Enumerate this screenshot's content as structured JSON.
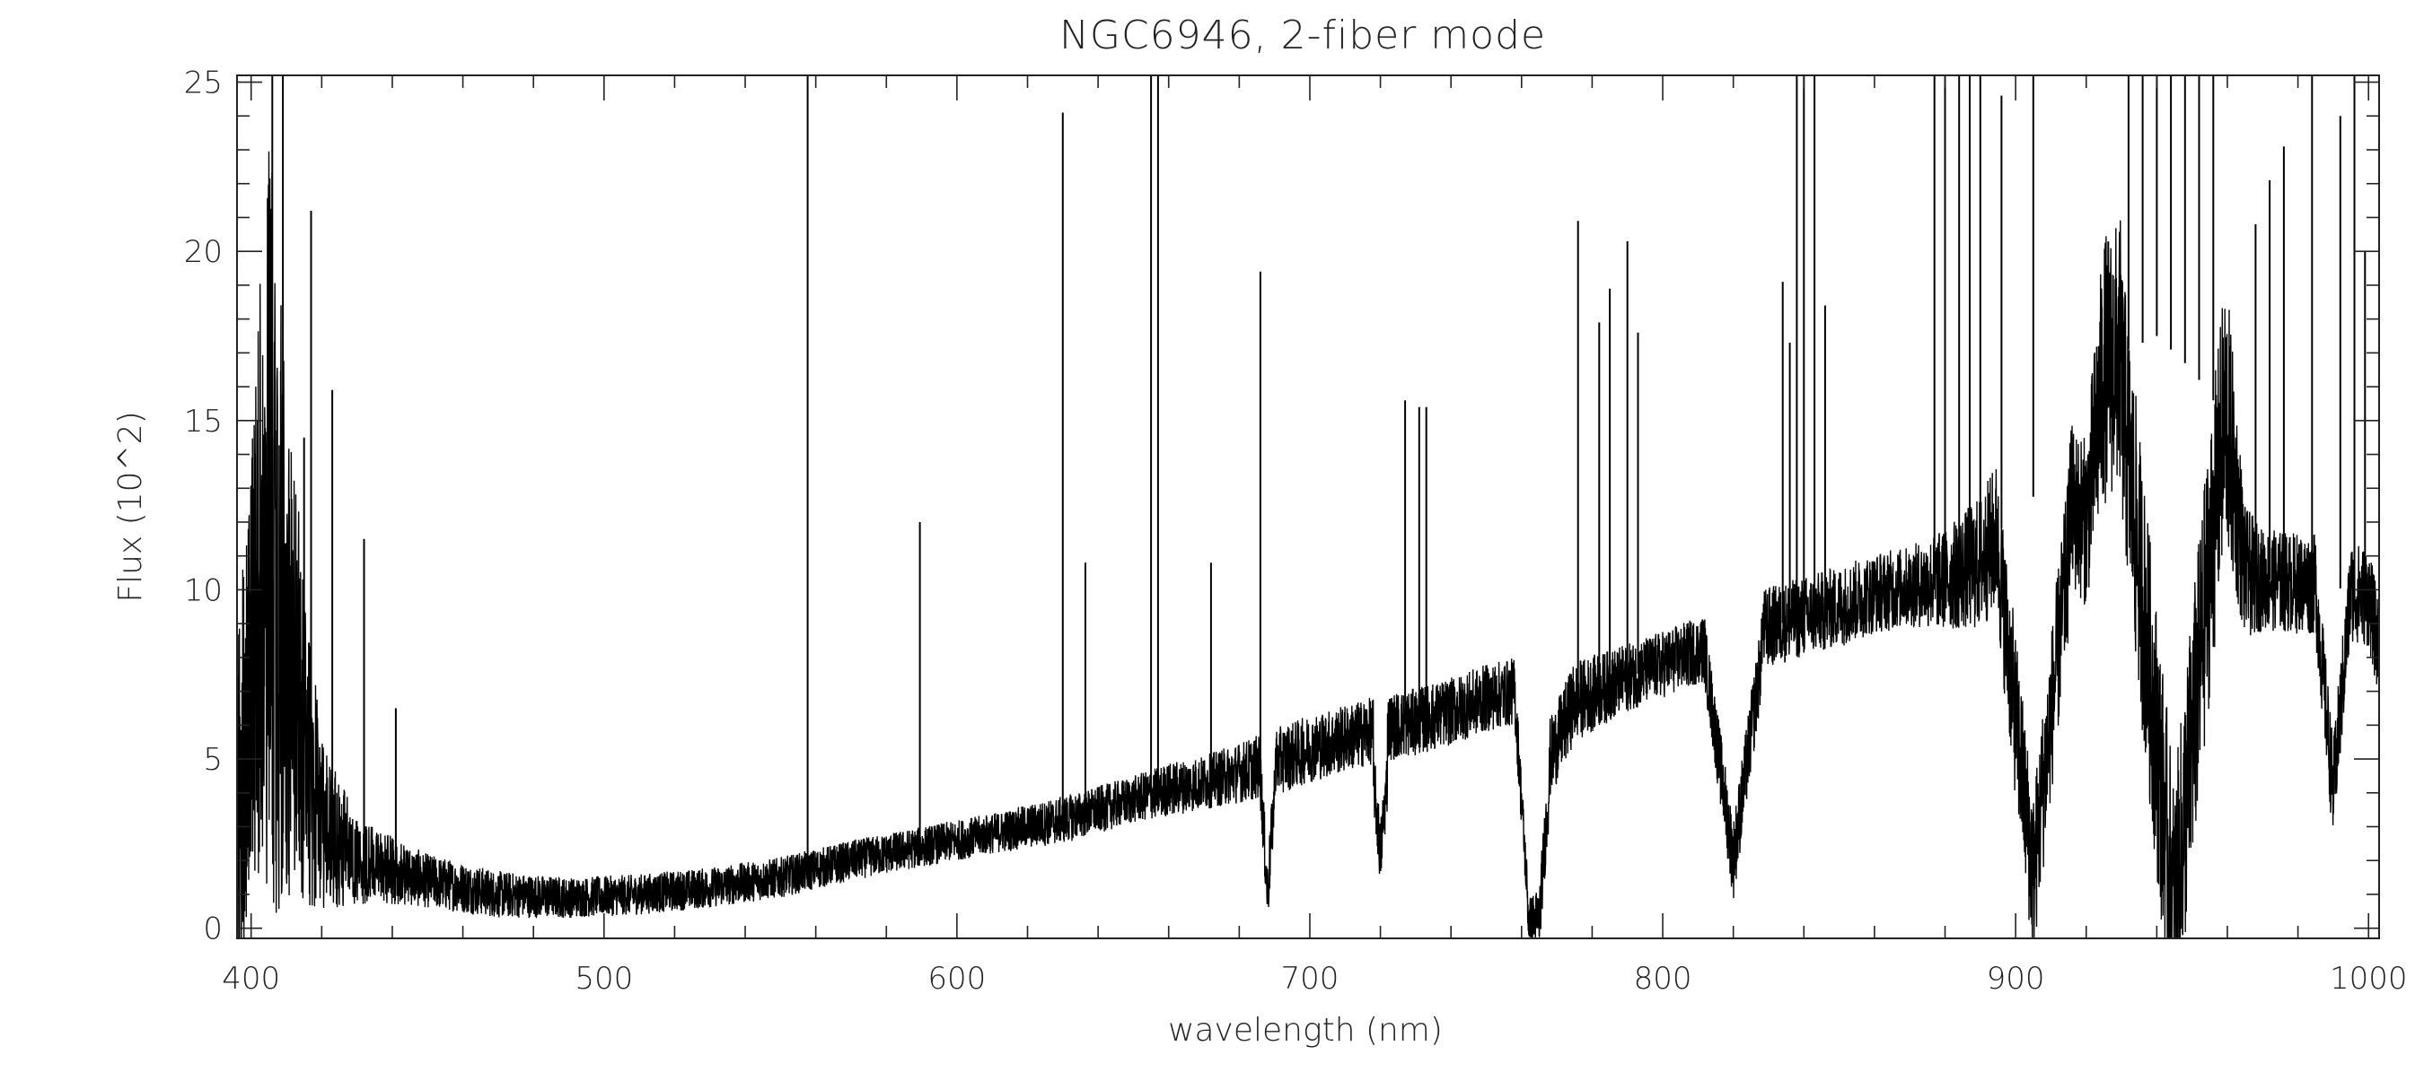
{
  "chart_data": {
    "type": "line",
    "title": "NGC6946, 2-fiber mode",
    "xlabel": "wavelength (nm)",
    "ylabel": "Flux (10^2)",
    "xlim": [
      396,
      1003
    ],
    "ylim": [
      -0.3,
      25.2
    ],
    "xticks": [
      "400",
      "500",
      "600",
      "700",
      "800",
      "900",
      "1000"
    ],
    "yticks": [
      "0",
      "5",
      "10",
      "15",
      "20",
      "25"
    ],
    "grid": false,
    "legend": "none",
    "line_color": "#000000",
    "series": [
      {
        "continuum": {
          "x": [
            396,
            400,
            405,
            410,
            420,
            430,
            440,
            450,
            470,
            490,
            510,
            530,
            550,
            570,
            590,
            610,
            630,
            650,
            660,
            670,
            680,
            690,
            700,
            710,
            720,
            730,
            740,
            750,
            758,
            762,
            768,
            775,
            790,
            800,
            810,
            820,
            830,
            840,
            850,
            860,
            870,
            880,
            890,
            900,
            910,
            920,
            925,
            930,
            940,
            950,
            960,
            965,
            970,
            980,
            990,
            1000,
            1003
          ],
          "y": [
            3,
            8,
            12,
            8,
            3,
            2,
            1.7,
            1.4,
            1.0,
            0.9,
            1.0,
            1.2,
            1.5,
            2.0,
            2.4,
            2.8,
            3.2,
            3.8,
            4.1,
            4.3,
            4.6,
            4.9,
            5.3,
            5.6,
            5.9,
            6.1,
            6.4,
            6.8,
            7.0,
            0.5,
            5.0,
            6.7,
            7.4,
            7.8,
            8.2,
            8.5,
            8.9,
            9.2,
            9.5,
            9.9,
            10.1,
            10.3,
            10.8,
            12.5,
            13.0,
            12.0,
            16.5,
            17.0,
            17.5,
            16.5,
            15.0,
            10.5,
            10.3,
            10.2,
            10.1,
            9.8,
            8.2
          ],
          "noise": [
            6,
            6,
            12,
            8,
            2.5,
            1.3,
            1.0,
            0.8,
            0.7,
            0.6,
            0.6,
            0.6,
            0.6,
            0.6,
            0.6,
            0.6,
            0.7,
            0.7,
            0.8,
            0.8,
            0.9,
            1.0,
            1.0,
            1.0,
            1.0,
            1.0,
            1.0,
            1.0,
            1.0,
            0.7,
            1.2,
            1.2,
            1.0,
            1.0,
            1.0,
            1.2,
            1.2,
            1.2,
            1.2,
            1.2,
            1.2,
            1.5,
            2.0,
            2.5,
            2.5,
            2.5,
            4.0,
            4.0,
            4.0,
            4.0,
            4.0,
            2.0,
            1.5,
            1.5,
            1.5,
            1.5,
            1.5
          ]
        },
        "absorption_bands": [
          {
            "x": [
              686,
              688,
              690
            ],
            "y": [
              4.5,
              1.0,
              4.0
            ]
          },
          {
            "x": [
              718,
              720,
              722
            ],
            "y": [
              4.5,
              2.2,
              4.5
            ]
          },
          {
            "x": [
              759,
              762,
              765,
              768
            ],
            "y": [
              6.8,
              0.2,
              0.3,
              4.5
            ]
          },
          {
            "x": [
              812,
              820,
              828
            ],
            "y": [
              8.0,
              2.0,
              8.0
            ]
          },
          {
            "x": [
              895,
              905,
              915
            ],
            "y": [
              11.0,
              1.5,
              11.0
            ]
          },
          {
            "x": [
              930,
              945,
              960
            ],
            "y": [
              16.0,
              0.3,
              16.0
            ]
          },
          {
            "x": [
              985,
              990,
              995
            ],
            "y": [
              10.0,
              4.0,
              10.0
            ]
          }
        ],
        "emission_lines": [
          {
            "x": 406,
            "y": 25.2
          },
          {
            "x": 409,
            "y": 25.2
          },
          {
            "x": 415,
            "y": 14.5
          },
          {
            "x": 417,
            "y": 21.2
          },
          {
            "x": 423,
            "y": 15.9
          },
          {
            "x": 432,
            "y": 11.5
          },
          {
            "x": 441,
            "y": 6.5
          },
          {
            "x": 557.7,
            "y": 25.2
          },
          {
            "x": 589.5,
            "y": 12.0
          },
          {
            "x": 630.0,
            "y": 24.1
          },
          {
            "x": 636.4,
            "y": 10.8
          },
          {
            "x": 655,
            "y": 25.2
          },
          {
            "x": 657,
            "y": 25.2
          },
          {
            "x": 672,
            "y": 10.8
          },
          {
            "x": 686,
            "y": 19.4
          },
          {
            "x": 727,
            "y": 15.6
          },
          {
            "x": 731,
            "y": 15.4
          },
          {
            "x": 733,
            "y": 15.4
          },
          {
            "x": 776,
            "y": 20.9
          },
          {
            "x": 782,
            "y": 17.9
          },
          {
            "x": 785,
            "y": 18.9
          },
          {
            "x": 790,
            "y": 20.3
          },
          {
            "x": 793,
            "y": 17.6
          },
          {
            "x": 834,
            "y": 19.1
          },
          {
            "x": 836,
            "y": 17.3
          },
          {
            "x": 838,
            "y": 25.2
          },
          {
            "x": 840,
            "y": 25.2
          },
          {
            "x": 843,
            "y": 25.2
          },
          {
            "x": 846,
            "y": 18.4
          },
          {
            "x": 877,
            "y": 25.2
          },
          {
            "x": 880,
            "y": 25.2
          },
          {
            "x": 884,
            "y": 25.2
          },
          {
            "x": 887,
            "y": 25.2
          },
          {
            "x": 890,
            "y": 25.2
          },
          {
            "x": 896,
            "y": 24.6
          },
          {
            "x": 905,
            "y": 25.2
          },
          {
            "x": 932,
            "y": 25.2
          },
          {
            "x": 936,
            "y": 25.2
          },
          {
            "x": 940,
            "y": 25.2
          },
          {
            "x": 944,
            "y": 25.2
          },
          {
            "x": 948,
            "y": 25.2
          },
          {
            "x": 952,
            "y": 25.2
          },
          {
            "x": 956,
            "y": 25.2
          },
          {
            "x": 968,
            "y": 20.8
          },
          {
            "x": 972,
            "y": 22.1
          },
          {
            "x": 976,
            "y": 23.1
          },
          {
            "x": 984,
            "y": 25.2
          },
          {
            "x": 992,
            "y": 24.0
          },
          {
            "x": 996,
            "y": 25.2
          },
          {
            "x": 999,
            "y": 20.0
          }
        ]
      }
    ]
  }
}
